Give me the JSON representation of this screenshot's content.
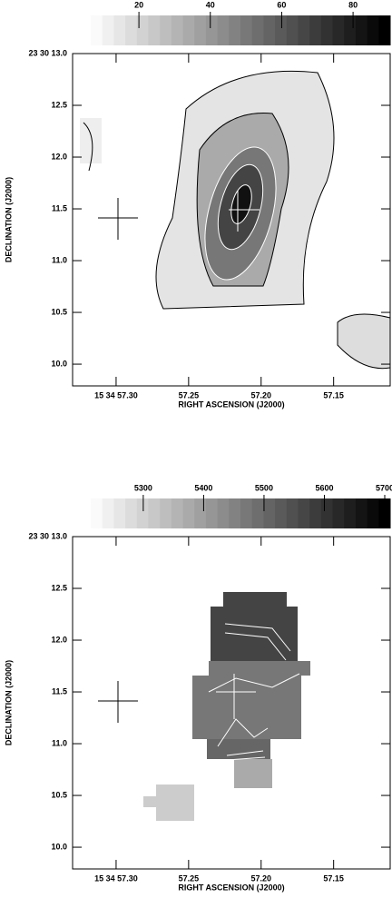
{
  "chart_data": [
    {
      "type": "image",
      "xlabel": "RIGHT ASCENSION (J2000)",
      "ylabel": "DECLINATION (J2000)",
      "xlim": [
        57.33,
        57.111
      ],
      "xticks": [
        {
          "value": 57.3,
          "label": "15 34 57.30"
        },
        57.25,
        {
          "value": 57.2,
          "label": "57.20"
        },
        57.15
      ],
      "ylim": [
        9.79,
        13.0
      ],
      "yticks": [
        {
          "value": 13.0,
          "label": "23 30 13.0"
        },
        12.5,
        {
          "value": 12.0,
          "label": "12.0"
        },
        11.5,
        {
          "value": 11.0,
          "label": "11.0"
        },
        10.5,
        {
          "value": 10.0,
          "label": "10.0"
        }
      ],
      "colorbar_lim": [
        6.5,
        90.4
      ],
      "colorbar_ticks": [
        20,
        40,
        60,
        80
      ]
    },
    {
      "type": "image",
      "xlabel": "RIGHT ASCENSION (J2000)",
      "ylabel": "DECLINATION (J2000)",
      "xlim": [
        57.33,
        57.111
      ],
      "xticks": [
        {
          "value": 57.3,
          "label": "15 34 57.30"
        },
        57.25,
        {
          "value": 57.2,
          "label": "57.20"
        },
        57.15
      ],
      "ylim": [
        9.79,
        13.0
      ],
      "yticks": [
        {
          "value": 13.0,
          "label": "23 30 13.0"
        },
        12.5,
        {
          "value": 12.0,
          "label": "12.0"
        },
        11.5,
        {
          "value": 11.0,
          "label": "11.0"
        },
        10.5,
        {
          "value": 10.0,
          "label": "10.0"
        }
      ],
      "colorbar_lim": [
        5213,
        5709
      ],
      "colorbar_ticks": [
        5300,
        5400,
        5500,
        5600,
        5700
      ]
    }
  ]
}
